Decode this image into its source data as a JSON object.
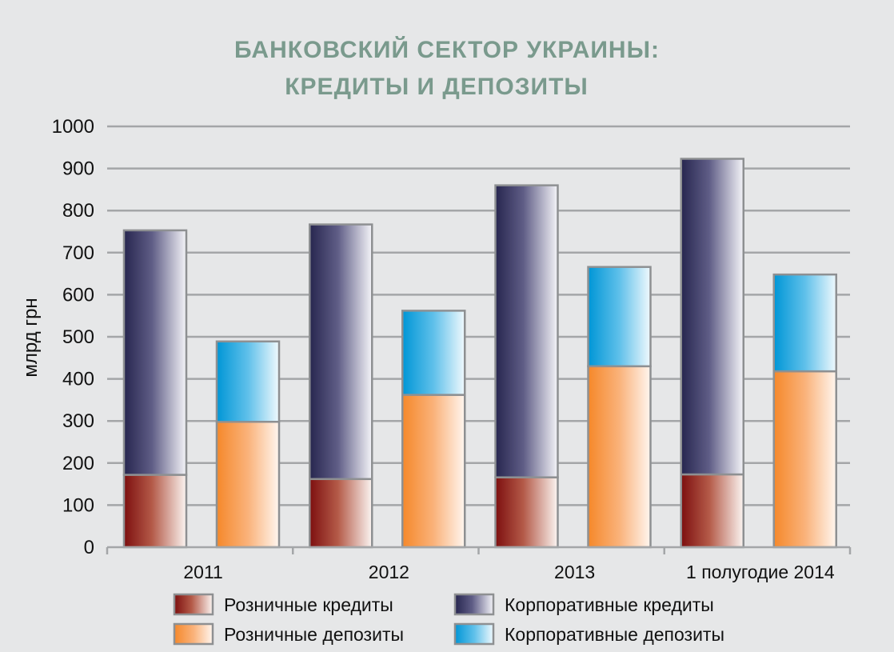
{
  "chart_data": {
    "type": "bar",
    "title_line1": "БАНКОВСКИЙ СЕКТОР УКРАИНЫ:",
    "title_line2": "КРЕДИТЫ И ДЕПОЗИТЫ",
    "ylabel": "млрд грн",
    "xlabel": "",
    "ylim": [
      0,
      1000
    ],
    "yticks": [
      0,
      100,
      200,
      300,
      400,
      500,
      600,
      700,
      800,
      900,
      1000
    ],
    "grid": true,
    "categories": [
      "2011",
      "2012",
      "2013",
      "1 полугодие 2014"
    ],
    "stacks": [
      {
        "name": "Кредиты",
        "series": [
          {
            "name": "Розничные кредиты",
            "values": [
              172,
              162,
              166,
              173
            ]
          },
          {
            "name": "Корпоративные кредиты",
            "values": [
              581,
              605,
              694,
              750
            ]
          }
        ]
      },
      {
        "name": "Депозиты",
        "series": [
          {
            "name": "Розничные депозиты",
            "values": [
              298,
              362,
              430,
              418
            ]
          },
          {
            "name": "Корпоративные депозиты",
            "values": [
              191,
              200,
              236,
              230
            ]
          }
        ]
      }
    ],
    "legend": [
      {
        "label": "Розничные кредиты",
        "color_dark": "#7d0f0f",
        "color_light": "#ffffff"
      },
      {
        "label": "Корпоративные кредиты",
        "color_dark": "#2b2a55",
        "color_light": "#ffffff"
      },
      {
        "label": "Розничные депозиты",
        "color_dark": "#f5882a",
        "color_light": "#ffffff"
      },
      {
        "label": "Корпоративные депозиты",
        "color_dark": "#0096d6",
        "color_light": "#ffffff"
      }
    ],
    "legend_placement": "bottom",
    "colors": {
      "background": "#e6e7e8",
      "grid": "#a4a6a8",
      "bar_border": "#8e9092",
      "title": "#7a9a8d"
    }
  }
}
